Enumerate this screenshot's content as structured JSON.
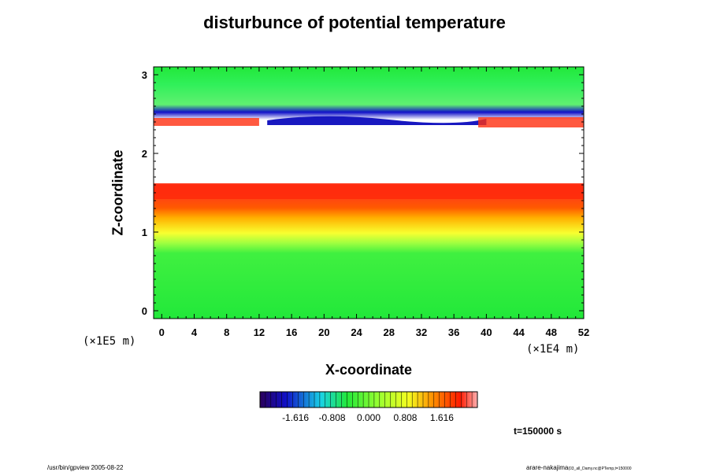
{
  "chart_data": {
    "type": "heatmap",
    "title": "disturbunce of potential temperature",
    "xlabel": "X-coordinate",
    "ylabel": "Z-coordinate",
    "x_scale_label": "(×1E4 m)",
    "y_scale_label": "(×1E5 m)",
    "xlim": [
      -1,
      52
    ],
    "ylim": [
      -0.1,
      3.1
    ],
    "x_ticks": [
      "0",
      "4",
      "8",
      "12",
      "16",
      "20",
      "24",
      "28",
      "32",
      "36",
      "40",
      "44",
      "48",
      "52"
    ],
    "y_ticks": [
      "0",
      "1",
      "2",
      "3"
    ],
    "colorbar_ticks": [
      "-1.616",
      "-0.808",
      "0.000",
      "0.808",
      "1.616"
    ],
    "colorbar_range": [
      -2.4,
      2.4
    ],
    "time_label": "t=150000 s",
    "description_bands": [
      {
        "z_range": [
          -0.1,
          1.0
        ],
        "value": 0.0
      },
      {
        "z_range": [
          1.0,
          1.3
        ],
        "value": 0.6
      },
      {
        "z_range": [
          1.3,
          1.6
        ],
        "value": 1.6
      },
      {
        "z_range": [
          1.6,
          2.3
        ],
        "value": "undefined"
      },
      {
        "z_range": [
          2.3,
          2.5
        ],
        "value": -1.6
      },
      {
        "z_range": [
          2.5,
          3.1
        ],
        "value": 0.0
      }
    ]
  },
  "footer": {
    "left": "/usr/bin/gpview 2005-08-22",
    "right": "arare-nakajima",
    "right_small": "(03_all_Damy.nc@PTemp,t=150000"
  },
  "colors": {
    "background_zero": "#22e83a",
    "positive_high": "#ff1a00",
    "negative_low": "#1010c8"
  }
}
